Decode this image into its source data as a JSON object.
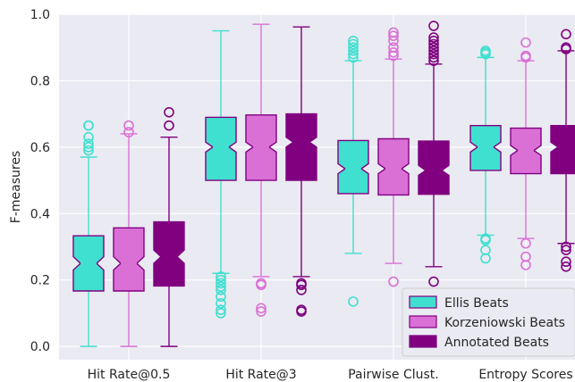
{
  "chart_data": {
    "type": "boxplot",
    "title": "",
    "ylabel": "F-measures",
    "xlabel": "",
    "ylim": [
      -0.04,
      1.0
    ],
    "yticks": [
      "0.0",
      "0.2",
      "0.4",
      "0.6",
      "0.8",
      "1.0"
    ],
    "categories": [
      "Hit Rate@0.5",
      "Hit Rate@3",
      "Pairwise Clust.",
      "Entropy Scores"
    ],
    "grid": true,
    "legend_position": "bottom-right",
    "colors": {
      "background": "#eaeaf2",
      "grid": "#ffffff",
      "text": "#262626"
    },
    "series": [
      {
        "name": "Ellis Beats",
        "face": "#40e0d0",
        "edge": "#40e0d0",
        "boxes": [
          {
            "whislo": 0.0,
            "q1": 0.167,
            "med": 0.25,
            "q3": 0.333,
            "whishi": 0.57,
            "notch_lo": 0.23,
            "notch_hi": 0.27,
            "fliers": [
              0.59,
              0.6,
              0.61,
              0.63,
              0.665,
              0.665
            ]
          },
          {
            "whislo": 0.22,
            "q1": 0.5,
            "med": 0.6,
            "q3": 0.69,
            "whishi": 0.95,
            "notch_lo": 0.585,
            "notch_hi": 0.615,
            "fliers": [
              0.1,
              0.11,
              0.13,
              0.15,
              0.17,
              0.18,
              0.19,
              0.2,
              0.21
            ]
          },
          {
            "whislo": 0.28,
            "q1": 0.46,
            "med": 0.535,
            "q3": 0.62,
            "whishi": 0.86,
            "notch_lo": 0.52,
            "notch_hi": 0.55,
            "fliers": [
              0.135,
              0.87,
              0.88,
              0.89,
              0.9,
              0.91,
              0.92
            ]
          },
          {
            "whislo": 0.335,
            "q1": 0.53,
            "med": 0.6,
            "q3": 0.665,
            "whishi": 0.87,
            "notch_lo": 0.585,
            "notch_hi": 0.615,
            "fliers": [
              0.265,
              0.29,
              0.32,
              0.325,
              0.88,
              0.885,
              0.89
            ]
          }
        ]
      },
      {
        "name": "Korzeniowski Beats",
        "face": "#da70d6",
        "edge": "#da70d6",
        "boxes": [
          {
            "whislo": 0.0,
            "q1": 0.167,
            "med": 0.25,
            "q3": 0.357,
            "whishi": 0.64,
            "notch_lo": 0.23,
            "notch_hi": 0.27,
            "fliers": [
              0.645,
              0.665
            ]
          },
          {
            "whislo": 0.21,
            "q1": 0.5,
            "med": 0.6,
            "q3": 0.697,
            "whishi": 0.97,
            "notch_lo": 0.585,
            "notch_hi": 0.615,
            "fliers": [
              0.105,
              0.115,
              0.185,
              0.19
            ]
          },
          {
            "whislo": 0.25,
            "q1": 0.456,
            "med": 0.535,
            "q3": 0.625,
            "whishi": 0.865,
            "notch_lo": 0.52,
            "notch_hi": 0.55,
            "fliers": [
              0.195,
              0.875,
              0.885,
              0.9,
              0.92,
              0.935,
              0.945
            ]
          },
          {
            "whislo": 0.325,
            "q1": 0.52,
            "med": 0.59,
            "q3": 0.657,
            "whishi": 0.86,
            "notch_lo": 0.575,
            "notch_hi": 0.605,
            "fliers": [
              0.245,
              0.27,
              0.31,
              0.87,
              0.875,
              0.915
            ]
          }
        ]
      },
      {
        "name": "Annotated Beats",
        "face": "#800080",
        "edge": "#800080",
        "boxes": [
          {
            "whislo": 0.0,
            "q1": 0.182,
            "med": 0.27,
            "q3": 0.375,
            "whishi": 0.63,
            "notch_lo": 0.25,
            "notch_hi": 0.29,
            "fliers": [
              0.665,
              0.705
            ]
          },
          {
            "whislo": 0.21,
            "q1": 0.5,
            "med": 0.615,
            "q3": 0.7,
            "whishi": 0.962,
            "notch_lo": 0.6,
            "notch_hi": 0.63,
            "fliers": [
              0.105,
              0.11,
              0.17,
              0.185,
              0.19
            ]
          },
          {
            "whislo": 0.24,
            "q1": 0.458,
            "med": 0.53,
            "q3": 0.618,
            "whishi": 0.85,
            "notch_lo": 0.515,
            "notch_hi": 0.545,
            "fliers": [
              0.195,
              0.86,
              0.87,
              0.88,
              0.89,
              0.9,
              0.91,
              0.92,
              0.93,
              0.965
            ]
          },
          {
            "whislo": 0.31,
            "q1": 0.52,
            "med": 0.6,
            "q3": 0.665,
            "whishi": 0.89,
            "notch_lo": 0.585,
            "notch_hi": 0.615,
            "fliers": [
              0.24,
              0.255,
              0.29,
              0.3,
              0.895,
              0.9,
              0.94
            ]
          }
        ]
      }
    ]
  }
}
